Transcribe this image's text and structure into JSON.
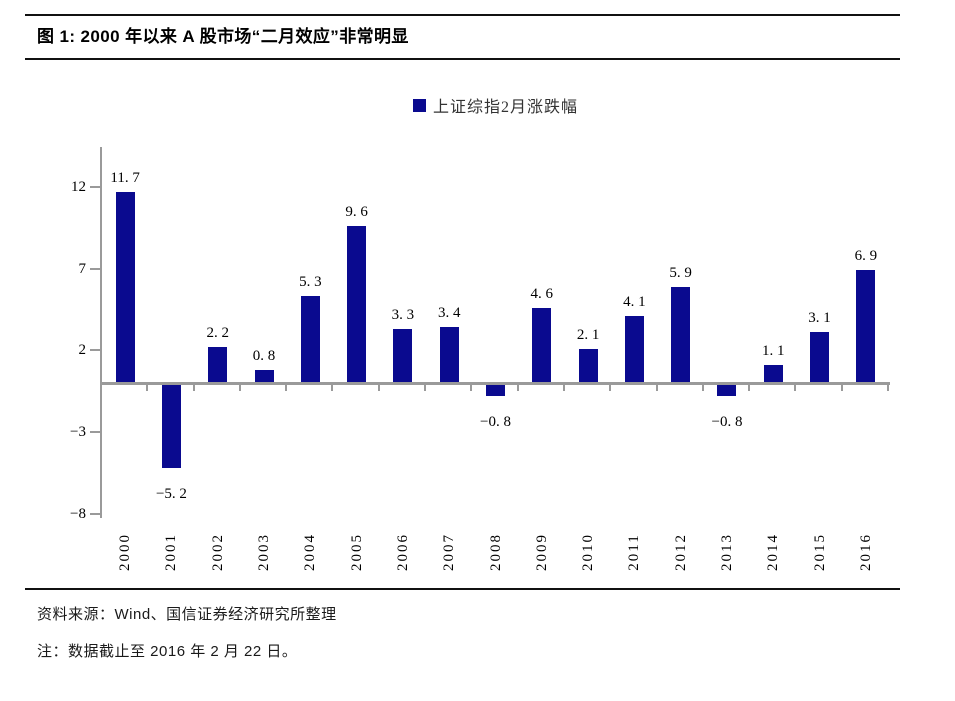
{
  "chart_data": {
    "type": "bar",
    "title": "图 1: 2000 年以来 A 股市场“二月效应”非常明显",
    "series_name": "上证综指2月涨跌幅",
    "categories": [
      "2000",
      "2001",
      "2002",
      "2003",
      "2004",
      "2005",
      "2006",
      "2007",
      "2008",
      "2009",
      "2010",
      "2011",
      "2012",
      "2013",
      "2014",
      "2015",
      "2016"
    ],
    "values": [
      11.7,
      -5.2,
      2.2,
      0.8,
      5.3,
      9.6,
      3.3,
      3.4,
      -0.8,
      4.6,
      2.1,
      4.1,
      5.9,
      -0.8,
      1.1,
      3.1,
      6.9
    ],
    "value_labels": [
      "11. 7",
      "−5. 2",
      "2. 2",
      "0. 8",
      "5. 3",
      "9. 6",
      "3. 3",
      "3. 4",
      "−0. 8",
      "4. 6",
      "2. 1",
      "4. 1",
      "5. 9",
      "−0. 8",
      "1. 1",
      "3. 1",
      "6. 9"
    ],
    "y_axis": {
      "ticks": [
        12,
        7,
        2,
        -3,
        -8
      ],
      "tick_labels": [
        "12",
        "7",
        "2",
        "−3",
        "−8"
      ],
      "range": [
        -8.2,
        14.5
      ]
    },
    "xlabel": "",
    "ylabel": "",
    "grid": false,
    "legend_position": "top-center",
    "colors": {
      "bar": "#0a0a8f",
      "axis": "#9a9a9a",
      "text": "#000000"
    }
  },
  "footer": {
    "source": "资料来源：Wind、国信证券经济研究所整理",
    "note": "注：数据截止至 2016 年 2 月 22 日。"
  }
}
